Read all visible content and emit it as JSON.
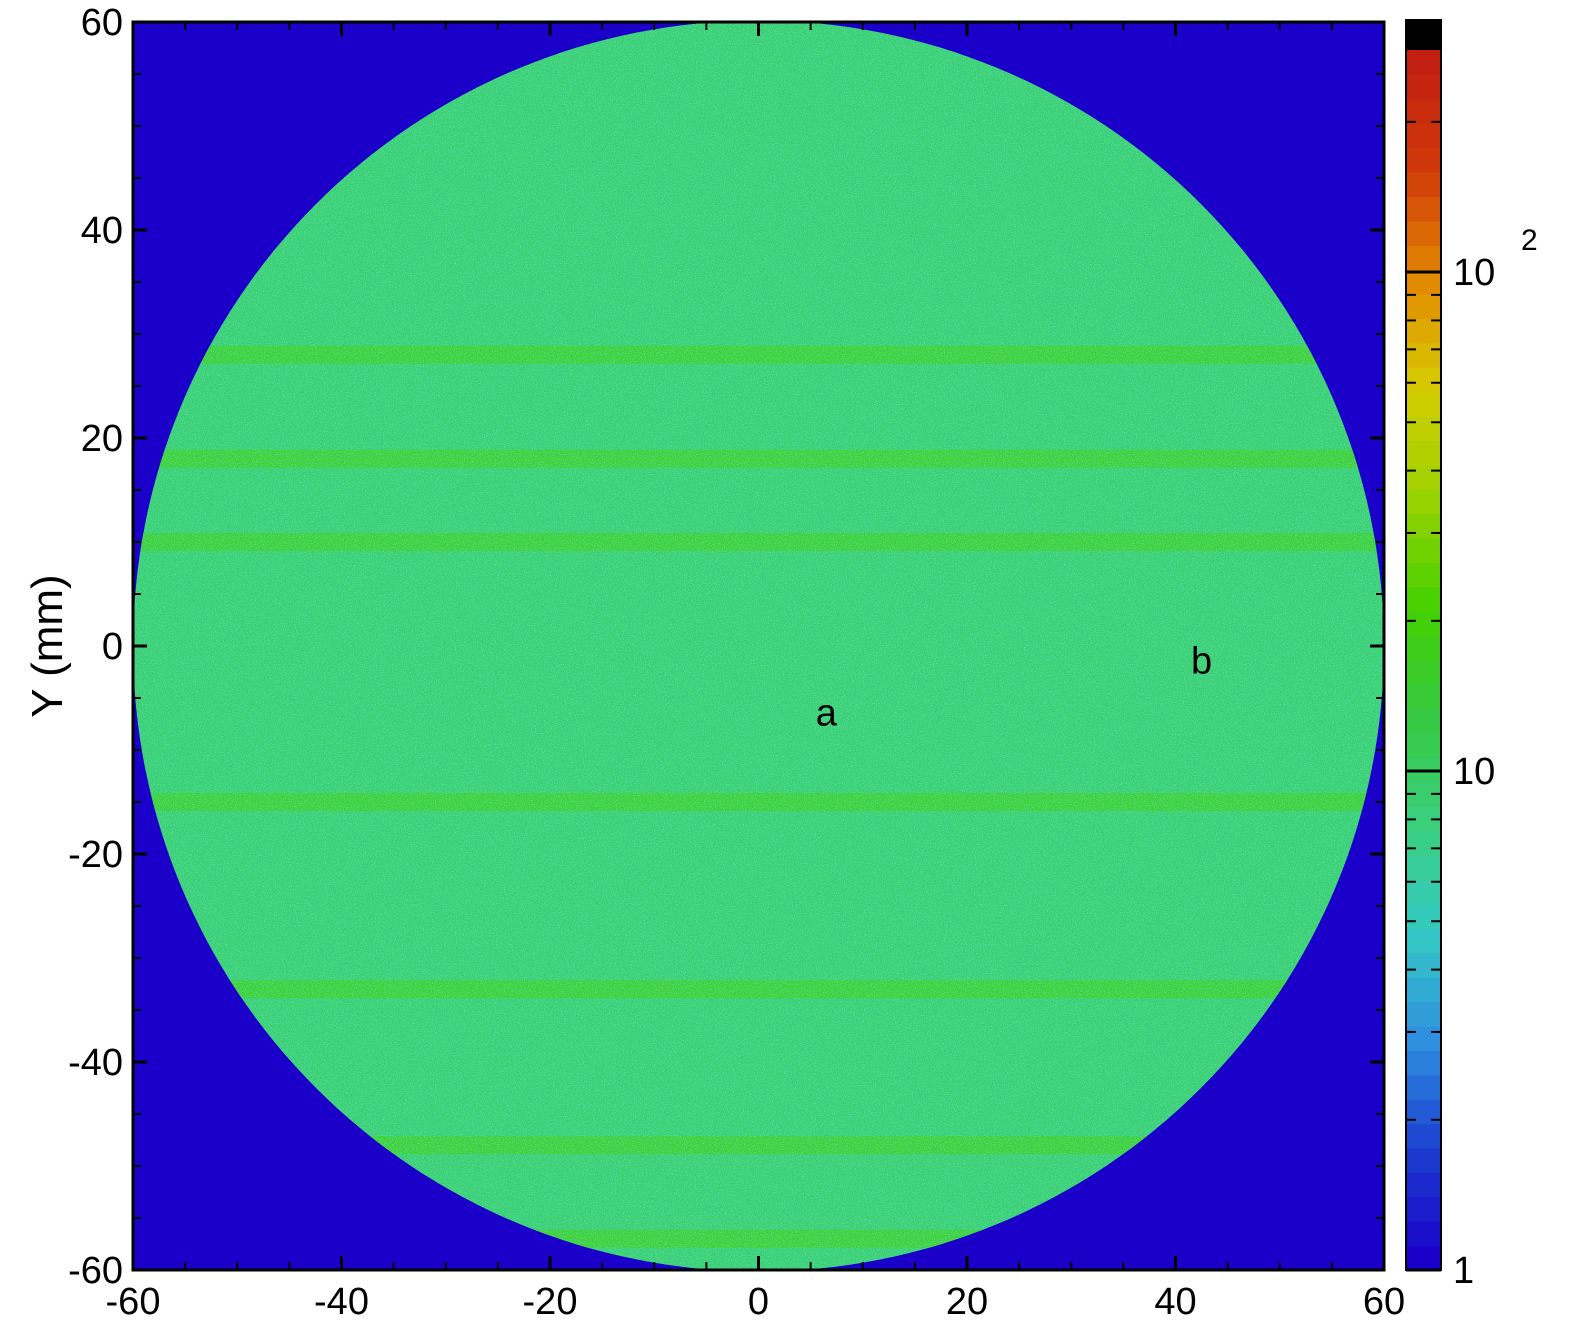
{
  "chart_data": {
    "type": "heatmap",
    "title": "",
    "xlabel": "",
    "ylabel": "Y (mm)",
    "xlim": [
      -60,
      60
    ],
    "ylim": [
      -60,
      60
    ],
    "x_ticks": [
      -60,
      -40,
      -20,
      0,
      20,
      40,
      60
    ],
    "y_ticks": [
      60,
      40,
      20,
      0,
      -20,
      -40,
      -60
    ],
    "x_tick_labels": [
      "-60",
      "-40",
      "-20",
      "0",
      "20",
      "40",
      "60"
    ],
    "y_tick_labels": [
      "60",
      "40",
      "20",
      "0",
      "-20",
      "-40",
      "-60"
    ],
    "region": {
      "shape": "disc",
      "center": [
        0,
        0
      ],
      "radius": 60,
      "typical_value": 15
    },
    "background_value": 1,
    "bands_y": [
      28,
      18,
      10,
      -15,
      -33,
      -48,
      -57
    ],
    "colorbar": {
      "scale": "log",
      "min": 1,
      "max": 320,
      "tick_values": [
        1,
        10,
        100
      ],
      "tick_labels": [
        {
          "base": "1",
          "exponent": ""
        },
        {
          "base": "10",
          "exponent": ""
        },
        {
          "base": "10",
          "exponent": "2"
        }
      ],
      "colors": [
        "#1a00c8",
        "#1c3fd0",
        "#2f8fe0",
        "#33c9c4",
        "#3ccf7e",
        "#35c940",
        "#44d100",
        "#9ad300",
        "#d6cc00",
        "#e38a00",
        "#d13a0a",
        "#c21f10",
        "#000000"
      ]
    },
    "annotations": [
      {
        "text": "a",
        "x": 6.5,
        "y": -6.5
      },
      {
        "text": "b",
        "x": 42.5,
        "y": -1.5
      }
    ]
  }
}
